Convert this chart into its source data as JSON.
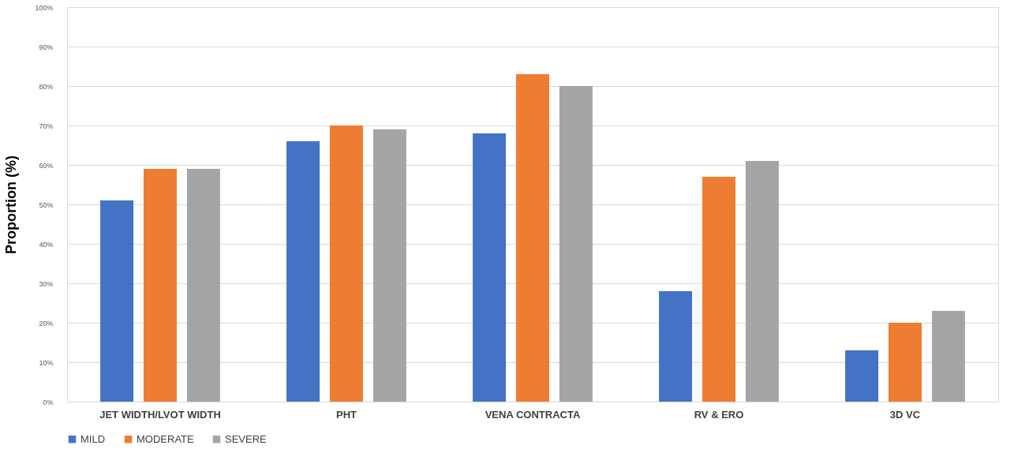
{
  "chart_data": {
    "type": "bar",
    "ylabel": "Proportion (%)",
    "categories": [
      "JET WIDTH/LVOT WIDTH",
      "PHT",
      "VENA CONTRACTA",
      "RV & ERO",
      "3D VC"
    ],
    "series": [
      {
        "name": "MILD",
        "color": "#4472c4",
        "values": [
          51,
          66,
          68,
          28,
          13
        ]
      },
      {
        "name": "MODERATE",
        "color": "#ed7d31",
        "values": [
          59,
          70,
          83,
          57,
          20
        ]
      },
      {
        "name": "SEVERE",
        "color": "#a5a5a5",
        "values": [
          59,
          69,
          80,
          61,
          23
        ]
      }
    ],
    "ylim": [
      0,
      100
    ],
    "yticks": [
      {
        "value": 0,
        "label": "0%"
      },
      {
        "value": 10,
        "label": "10%"
      },
      {
        "value": 20,
        "label": "20%"
      },
      {
        "value": 30,
        "label": "30%"
      },
      {
        "value": 40,
        "label": "40%"
      },
      {
        "value": 50,
        "label": "50%"
      },
      {
        "value": 60,
        "label": "60%"
      },
      {
        "value": 70,
        "label": "70%"
      },
      {
        "value": 80,
        "label": "80%"
      },
      {
        "value": 90,
        "label": "90%"
      },
      {
        "value": 100,
        "label": "100%"
      }
    ],
    "grid": "y",
    "legend": "bottom"
  }
}
